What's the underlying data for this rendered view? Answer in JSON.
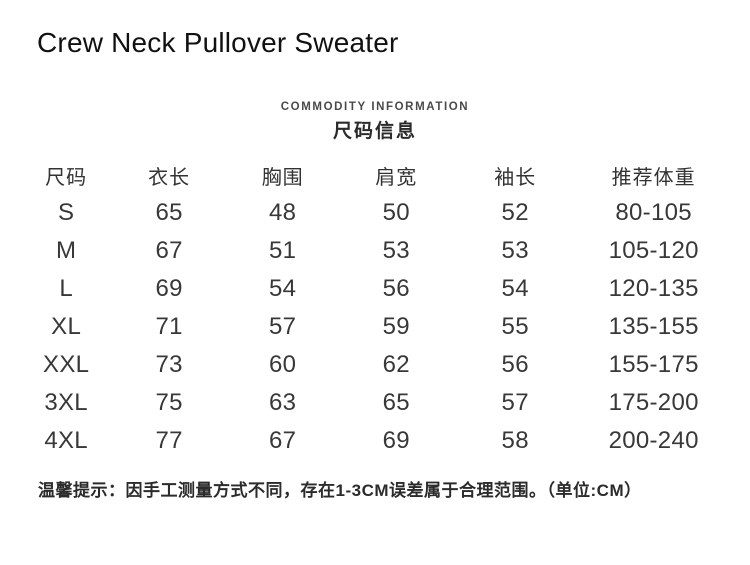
{
  "page_title": "Crew Neck Pullover Sweater",
  "section": {
    "eyebrow": "COMMODITY INFORMATION",
    "title": "尺码信息"
  },
  "size_table": {
    "headers": [
      "尺码",
      "衣长",
      "胸围",
      "肩宽",
      "袖长",
      "推荐体重"
    ],
    "rows": [
      {
        "size": "S",
        "values": [
          "65",
          "48",
          "50",
          "52",
          "80-105"
        ]
      },
      {
        "size": "M",
        "values": [
          "67",
          "51",
          "53",
          "53",
          "105-120"
        ]
      },
      {
        "size": "L",
        "values": [
          "69",
          "54",
          "56",
          "54",
          "120-135"
        ]
      },
      {
        "size": "XL",
        "values": [
          "71",
          "57",
          "59",
          "55",
          "135-155"
        ]
      },
      {
        "size": "XXL",
        "values": [
          "73",
          "60",
          "62",
          "56",
          "155-175"
        ]
      },
      {
        "size": "3XL",
        "values": [
          "75",
          "63",
          "65",
          "57",
          "175-200"
        ]
      },
      {
        "size": "4XL",
        "values": [
          "77",
          "67",
          "69",
          "58",
          "200-240"
        ]
      }
    ]
  },
  "note": "温馨提示：因手工测量方式不同，存在1-3CM误差属于合理范围。（单位:CM）",
  "colors": {
    "title_text": "#111111",
    "eyebrow_text": "#4a4a4a",
    "body_text": "#333333",
    "background": "#ffffff"
  }
}
